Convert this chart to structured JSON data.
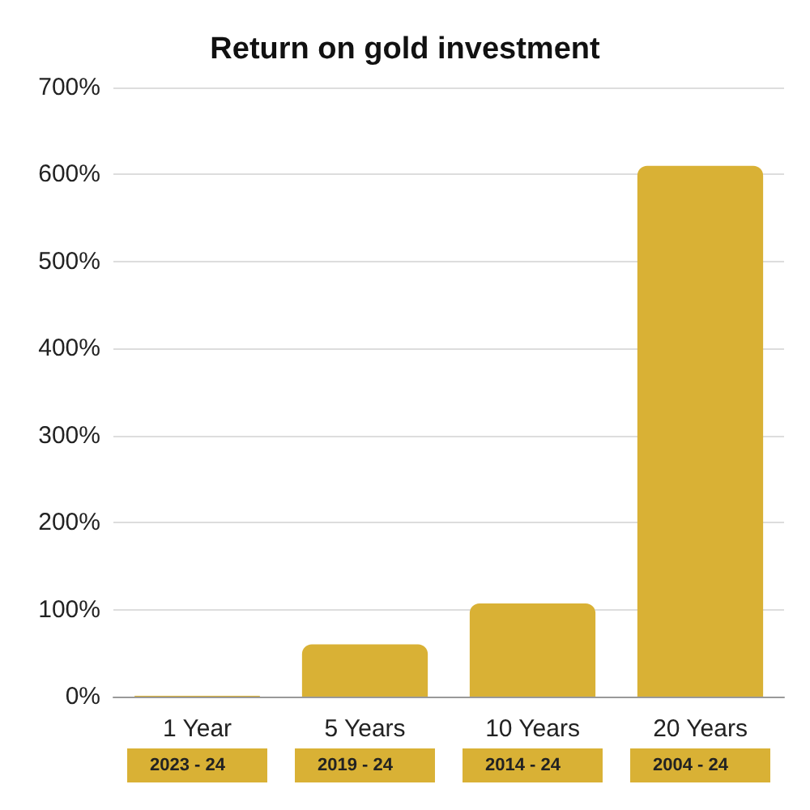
{
  "chart_data": {
    "type": "bar",
    "title": "Return on gold investment",
    "categories": [
      "1 Year",
      "5 Years",
      "10 Years",
      "20 Years"
    ],
    "values": [
      1,
      60,
      107,
      610
    ],
    "color": "#d9b135",
    "annotations": [
      "2023 - 24",
      "2019 - 24",
      "2014 - 24",
      "2004 - 24"
    ],
    "ylim": [
      0,
      700
    ],
    "yticks": [
      {
        "value": 0,
        "label": "0%"
      },
      {
        "value": 100,
        "label": "100%"
      },
      {
        "value": 200,
        "label": "200%"
      },
      {
        "value": 300,
        "label": "300%"
      },
      {
        "value": 400,
        "label": "400%"
      },
      {
        "value": 500,
        "label": "500%"
      },
      {
        "value": 600,
        "label": "600%"
      },
      {
        "value": 700,
        "label": "700%"
      }
    ],
    "grid": "y"
  }
}
